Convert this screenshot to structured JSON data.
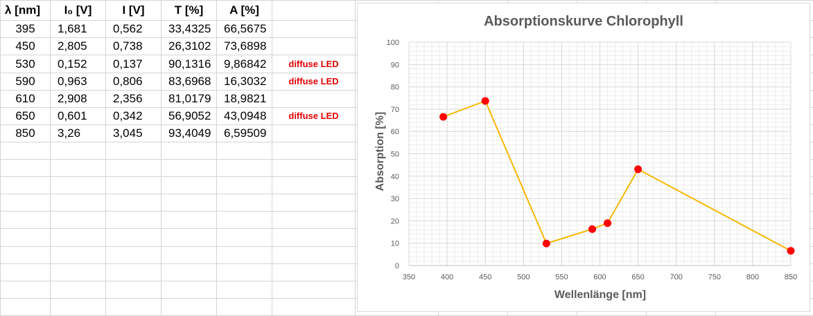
{
  "table": {
    "headers": [
      "λ [nm]",
      "I₀ [V]",
      "I [V]",
      "T [%]",
      "A [%]"
    ],
    "rows": [
      [
        "395",
        "1,681",
        "0,562",
        "33,4325",
        "66,5675"
      ],
      [
        "450",
        "2,805",
        "0,738",
        "26,3102",
        "73,6898"
      ],
      [
        "530",
        "0,152",
        "0,137",
        "90,1316",
        "9,86842"
      ],
      [
        "590",
        "0,963",
        "0,806",
        "83,6968",
        "16,3032"
      ],
      [
        "610",
        "2,908",
        "2,356",
        "81,0179",
        "18,9821"
      ],
      [
        "650",
        "0,601",
        "0,342",
        "56,9052",
        "43,0948"
      ],
      [
        "850",
        "3,26",
        "3,045",
        "93,4049",
        "6,59509"
      ]
    ],
    "notes": [
      "",
      "",
      "diffuse LED",
      "diffuse LED",
      "",
      "diffuse LED",
      ""
    ]
  },
  "colors": {
    "line": "#f5b800",
    "marker": "#ff0000",
    "grid": "#d9d9d9",
    "note": "#e00000"
  },
  "chart_data": {
    "type": "scatter",
    "title": "Absorptionskurve Chlorophyll",
    "xlabel": "Wellenlänge [nm]",
    "ylabel": "Absorption [%]",
    "xlim": [
      350,
      850
    ],
    "ylim": [
      0,
      100
    ],
    "xticks": [
      "350",
      "400",
      "450",
      "500",
      "550",
      "600",
      "650",
      "700",
      "750",
      "800",
      "850"
    ],
    "yticks": [
      "0",
      "10",
      "20",
      "30",
      "40",
      "50",
      "60",
      "70",
      "80",
      "90",
      "100"
    ],
    "grid": true,
    "series": [
      {
        "x": [
          395,
          450,
          530,
          590,
          610,
          650,
          850
        ],
        "y": [
          66.5675,
          73.6898,
          9.86842,
          16.3032,
          18.9821,
          43.0948,
          6.59509
        ]
      }
    ]
  }
}
